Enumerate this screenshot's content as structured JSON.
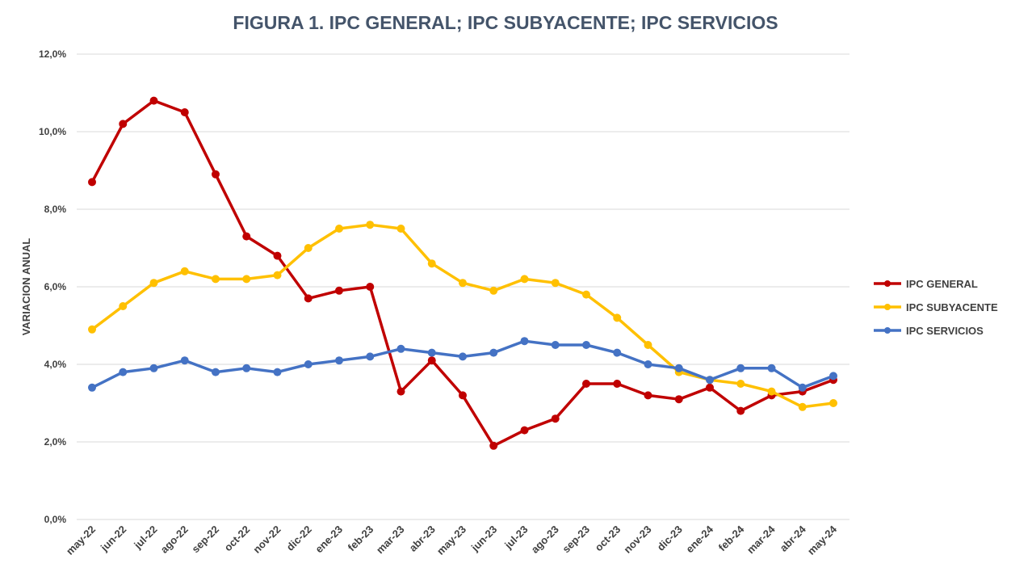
{
  "chart_data": {
    "type": "line",
    "title": "FIGURA 1. IPC GENERAL; IPC SUBYACENTE; IPC SERVICIOS",
    "xlabel": "",
    "ylabel": "VARIACION ANUAL",
    "ylim": [
      0,
      12
    ],
    "yticks": [
      0,
      2,
      4,
      6,
      8,
      10,
      12
    ],
    "ytick_labels": [
      "0,0%",
      "2,0%",
      "4,0%",
      "6,0%",
      "8,0%",
      "10,0%",
      "12,0%"
    ],
    "grid": true,
    "legend_position": "right",
    "categories": [
      "may-22",
      "jun-22",
      "jul-22",
      "ago-22",
      "sep-22",
      "oct-22",
      "nov-22",
      "dic-22",
      "ene-23",
      "feb-23",
      "mar-23",
      "abr-23",
      "may-23",
      "jun-23",
      "jul-23",
      "ago-23",
      "sep-23",
      "oct-23",
      "nov-23",
      "dic-23",
      "ene-24",
      "feb-24",
      "mar-24",
      "abr-24",
      "may-24"
    ],
    "series": [
      {
        "name": "IPC GENERAL",
        "color": "#c00000",
        "values": [
          8.7,
          10.2,
          10.8,
          10.5,
          8.9,
          7.3,
          6.8,
          5.7,
          5.9,
          6.0,
          3.3,
          4.1,
          3.2,
          1.9,
          2.3,
          2.6,
          3.5,
          3.5,
          3.2,
          3.1,
          3.4,
          2.8,
          3.2,
          3.3,
          3.6
        ]
      },
      {
        "name": "IPC SUBYACENTE",
        "color": "#ffc000",
        "values": [
          4.9,
          5.5,
          6.1,
          6.4,
          6.2,
          6.2,
          6.3,
          7.0,
          7.5,
          7.6,
          7.5,
          6.6,
          6.1,
          5.9,
          6.2,
          6.1,
          5.8,
          5.2,
          4.5,
          3.8,
          3.6,
          3.5,
          3.3,
          2.9,
          3.0
        ]
      },
      {
        "name": "IPC SERVICIOS",
        "color": "#4472c4",
        "values": [
          3.4,
          3.8,
          3.9,
          4.1,
          3.8,
          3.9,
          3.8,
          4.0,
          4.1,
          4.2,
          4.4,
          4.3,
          4.2,
          4.3,
          4.6,
          4.5,
          4.5,
          4.3,
          4.0,
          3.9,
          3.6,
          3.9,
          3.9,
          3.4,
          3.7
        ]
      }
    ]
  }
}
